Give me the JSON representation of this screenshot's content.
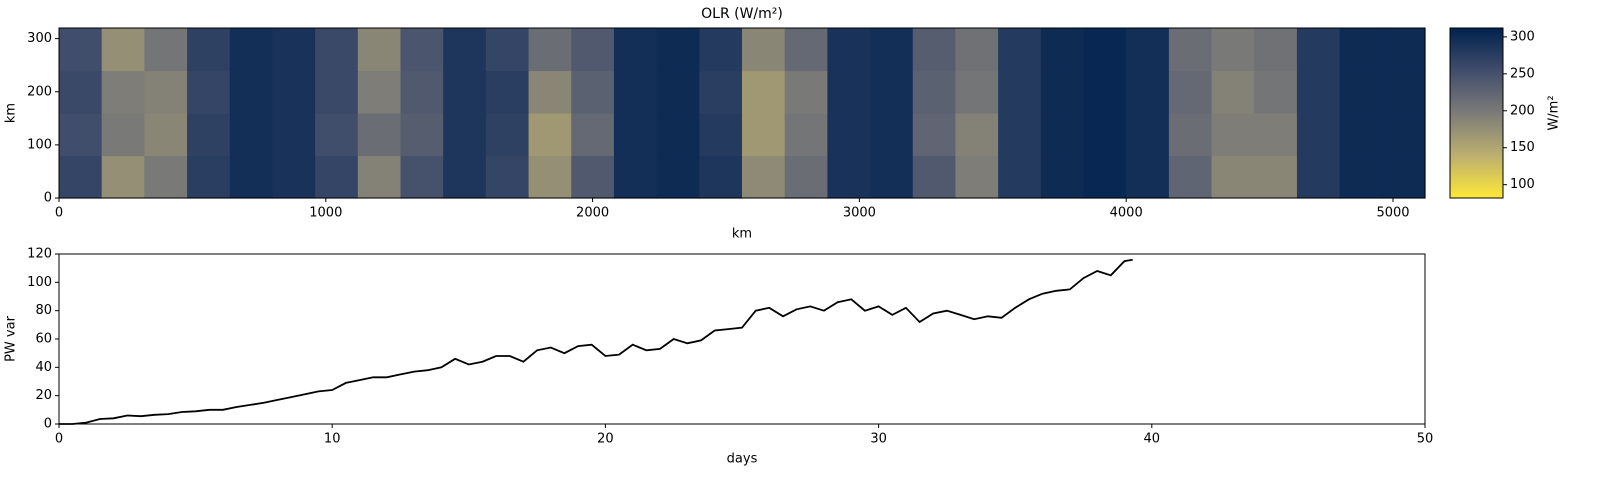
{
  "chart_data": [
    {
      "type": "heatmap",
      "title": "OLR (W/m²)",
      "xlabel": "km",
      "ylabel": "km",
      "xlim": [
        0,
        5120
      ],
      "ylim": [
        0,
        320
      ],
      "xticks": [
        0,
        1000,
        2000,
        3000,
        4000,
        5000
      ],
      "yticks": [
        0,
        100,
        200,
        300
      ],
      "z": [
        [
          265,
          175,
          200,
          275,
          295,
          290,
          265,
          190,
          250,
          285,
          265,
          175,
          240,
          295,
          300,
          285,
          180,
          215,
          290,
          295,
          240,
          195,
          280,
          300,
          305,
          295,
          225,
          185,
          185,
          280,
          300,
          300
        ],
        [
          255,
          200,
          185,
          270,
          295,
          290,
          255,
          215,
          235,
          285,
          270,
          165,
          220,
          295,
          300,
          280,
          165,
          205,
          290,
          295,
          225,
          190,
          280,
          300,
          305,
          295,
          215,
          195,
          195,
          280,
          300,
          300
        ],
        [
          260,
          195,
          190,
          265,
          295,
          290,
          260,
          195,
          240,
          285,
          275,
          185,
          230,
          295,
          300,
          275,
          165,
          200,
          290,
          295,
          230,
          205,
          280,
          300,
          305,
          295,
          220,
          190,
          205,
          280,
          300,
          300
        ],
        [
          255,
          175,
          205,
          270,
          295,
          290,
          260,
          185,
          245,
          285,
          265,
          215,
          240,
          295,
          300,
          280,
          185,
          220,
          290,
          295,
          235,
          210,
          280,
          300,
          305,
          295,
          215,
          200,
          210,
          280,
          300,
          300
        ]
      ],
      "colormap": [
        "#fee838",
        "#bcaf6f",
        "#7c7b78",
        "#414d6b",
        "#00224e"
      ],
      "clim": [
        82,
        312
      ],
      "cticks": [
        100,
        150,
        200,
        250,
        300
      ],
      "clabel": "W/m²"
    },
    {
      "type": "line",
      "xlabel": "days",
      "ylabel": "PW var",
      "color": "#000000",
      "xlim": [
        0,
        50
      ],
      "ylim": [
        0,
        120
      ],
      "xticks": [
        0,
        10,
        20,
        30,
        40,
        50
      ],
      "yticks": [
        0,
        20,
        40,
        60,
        80,
        100,
        120
      ],
      "x": [
        0,
        0.5,
        1,
        1.5,
        2,
        2.5,
        3,
        3.5,
        4,
        4.5,
        5,
        5.5,
        6,
        6.5,
        7,
        7.5,
        8,
        8.5,
        9,
        9.5,
        10,
        10.5,
        11,
        11.5,
        12,
        12.5,
        13,
        13.5,
        14,
        14.5,
        15,
        15.5,
        16,
        16.5,
        17,
        17.5,
        18,
        18.5,
        19,
        19.5,
        20,
        20.5,
        21,
        21.5,
        22,
        22.5,
        23,
        23.5,
        24,
        24.5,
        25,
        25.5,
        26,
        26.5,
        27,
        27.5,
        28,
        28.5,
        29,
        29.5,
        30,
        30.5,
        31,
        31.5,
        32,
        32.5,
        33,
        33.5,
        34,
        34.5,
        35,
        35.5,
        36,
        36.5,
        37,
        37.5,
        38,
        38.5,
        39,
        39.3
      ],
      "y": [
        0,
        0,
        1,
        3.5,
        4,
        6,
        5.5,
        6.5,
        7,
        8.5,
        9,
        10,
        10,
        12,
        13.5,
        15,
        17,
        19,
        21,
        23,
        24,
        29,
        31,
        33,
        33,
        35,
        37,
        38,
        40,
        46,
        42,
        44,
        48,
        48,
        44,
        52,
        54,
        50,
        55,
        56,
        48,
        49,
        56,
        52,
        53,
        60,
        57,
        59,
        66,
        67,
        68,
        80,
        82,
        76,
        81,
        83,
        80,
        86,
        88,
        80,
        83,
        77,
        82,
        72,
        78,
        80,
        77,
        74,
        76,
        75,
        82,
        88,
        92,
        94,
        95,
        103,
        108,
        105,
        115,
        116
      ]
    }
  ]
}
